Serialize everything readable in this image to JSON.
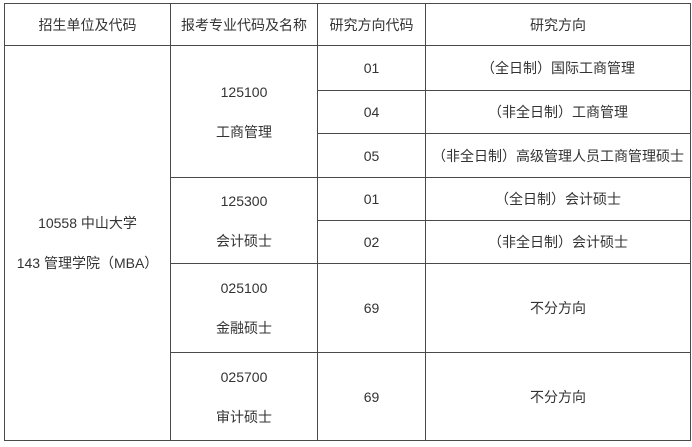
{
  "table": {
    "headers": [
      "招生单位及代码",
      "报考专业代码及名称",
      "研究方向代码",
      "研究方向"
    ],
    "unit": {
      "line1": "10558 中山大学",
      "line2": "143 管理学院（MBA）"
    },
    "majors": [
      {
        "code": "125100",
        "name": "工商管理",
        "directions": [
          {
            "code": "01",
            "name": "（全日制）国际工商管理"
          },
          {
            "code": "04",
            "name": "（非全日制）工商管理"
          },
          {
            "code": "05",
            "name": "（非全日制）高级管理人员工商管理硕士"
          }
        ]
      },
      {
        "code": "125300",
        "name": "会计硕士",
        "directions": [
          {
            "code": "01",
            "name": "（全日制）会计硕士"
          },
          {
            "code": "02",
            "name": "（非全日制）会计硕士"
          }
        ]
      },
      {
        "code": "025100",
        "name": "金融硕士",
        "directions": [
          {
            "code": "69",
            "name": "不分方向"
          }
        ]
      },
      {
        "code": "025700",
        "name": "审计硕士",
        "directions": [
          {
            "code": "69",
            "name": "不分方向"
          }
        ]
      }
    ],
    "colors": {
      "text": "#333333",
      "border": "#4a4a4a",
      "background": "#ffffff"
    }
  }
}
